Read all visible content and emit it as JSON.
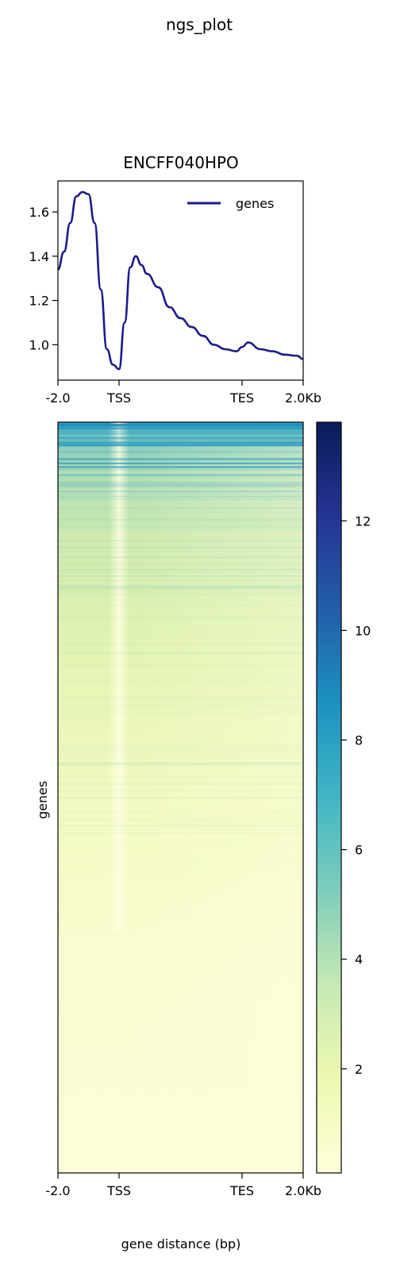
{
  "figure": {
    "suptitle": "ngs_plot"
  },
  "chart_data": [
    {
      "type": "line",
      "title": "ENCFF040HPO",
      "xlabel": "",
      "ylabel": "",
      "x_ticks": [
        "-2.0",
        "TSS",
        "TES",
        "2.0Kb"
      ],
      "y_ticks": [
        1.0,
        1.2,
        1.4,
        1.6
      ],
      "ylim": [
        0.84,
        1.74
      ],
      "grid": false,
      "legend": {
        "position": "top-right",
        "entries": [
          "genes"
        ]
      },
      "series": [
        {
          "name": "genes",
          "color": "#1a1a8c",
          "points": [
            [
              "-2.0",
              1.34
            ],
            [
              "-1.8",
              1.42
            ],
            [
              "-1.6",
              1.55
            ],
            [
              "-1.4",
              1.67
            ],
            [
              "-1.2",
              1.69
            ],
            [
              "-1.0",
              1.68
            ],
            [
              "-0.8",
              1.55
            ],
            [
              "-0.6",
              1.25
            ],
            [
              "-0.4",
              0.98
            ],
            [
              "-0.2",
              0.91
            ],
            [
              "TSS",
              0.89
            ],
            [
              "0.2",
              1.1
            ],
            [
              "0.4",
              1.35
            ],
            [
              "0.6",
              1.4
            ],
            [
              "0.8",
              1.36
            ],
            [
              "1.0",
              1.32
            ],
            [
              "1.4",
              1.26
            ],
            [
              "1.8",
              1.17
            ],
            [
              "2.2",
              1.12
            ],
            [
              "2.6",
              1.08
            ],
            [
              "3.0",
              1.04
            ],
            [
              "3.4",
              1.0
            ],
            [
              "3.8",
              0.98
            ],
            [
              "4.2",
              0.97
            ],
            [
              "TES",
              0.99
            ],
            [
              "TES+0.2",
              1.01
            ],
            [
              "TES+0.6",
              0.98
            ],
            [
              "TES+1.0",
              0.97
            ],
            [
              "TES+1.4",
              0.955
            ],
            [
              "TES+1.8",
              0.95
            ],
            [
              "2.0Kb",
              0.935
            ]
          ]
        }
      ]
    },
    {
      "type": "heatmap",
      "title": "",
      "xlabel": "gene distance (bp)",
      "ylabel": "genes",
      "x_ticks": [
        "-2.0",
        "TSS",
        "TES",
        "2.0Kb"
      ],
      "colormap": "YlGnBu",
      "colorbar": {
        "range": [
          0.1,
          13.8
        ],
        "ticks": [
          2,
          4,
          6,
          8,
          10,
          12
        ]
      }
    }
  ]
}
